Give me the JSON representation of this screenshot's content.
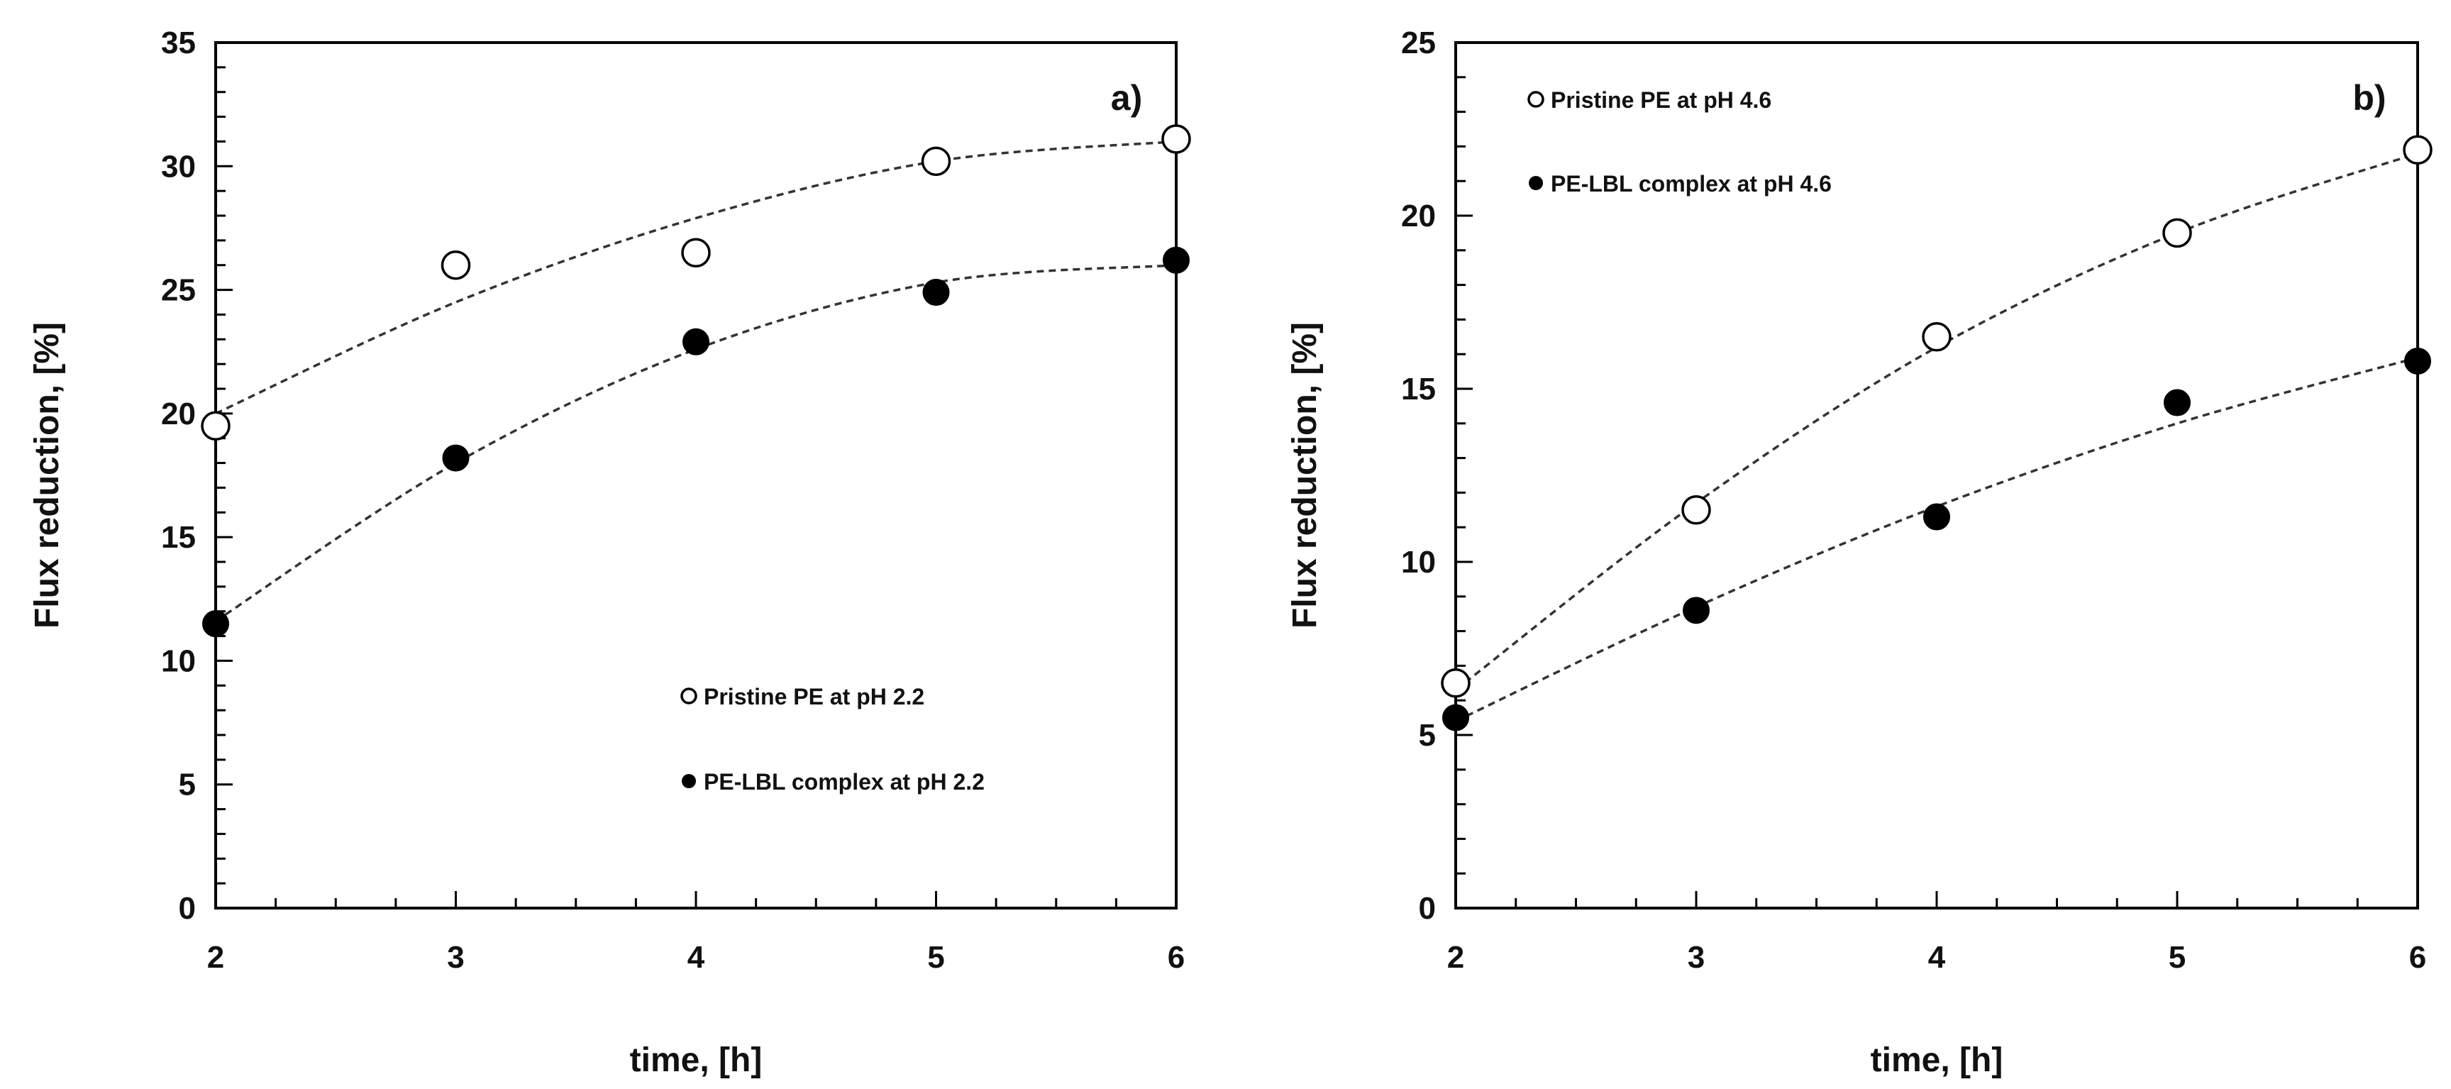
{
  "chart_data": [
    {
      "type": "scatter",
      "panel_tag": "a)",
      "xlabel": "time, [h]",
      "ylabel": "Flux reduction, [%]",
      "xlim": [
        2,
        6
      ],
      "ylim": [
        0,
        35
      ],
      "x_ticks": [
        "2",
        "3",
        "4",
        "5",
        "6"
      ],
      "y_ticks": [
        "0",
        "5",
        "10",
        "15",
        "20",
        "25",
        "30",
        "35"
      ],
      "y_tick_step": 5,
      "x_minor_step": 0.25,
      "y_minor_step": 1,
      "legend_position": "lower-right",
      "series": [
        {
          "name": "Pristine PE at pH 2.2",
          "marker": "open-circle",
          "x": [
            2,
            3,
            4,
            5,
            6
          ],
          "y": [
            19.5,
            26.0,
            26.5,
            30.2,
            31.1
          ],
          "fit": [
            20.0,
            24.5,
            27.9,
            30.2,
            31.0
          ]
        },
        {
          "name": "PE-LBL complex at pH 2.2",
          "marker": "filled-circle",
          "x": [
            2,
            3,
            4,
            5,
            6
          ],
          "y": [
            11.5,
            18.2,
            22.9,
            24.9,
            26.2
          ],
          "fit": [
            11.6,
            18.0,
            22.6,
            25.3,
            26.0
          ]
        }
      ]
    },
    {
      "type": "scatter",
      "panel_tag": "b)",
      "xlabel": "time, [h]",
      "ylabel": "Flux reduction, [%]",
      "xlim": [
        2,
        6
      ],
      "ylim": [
        0,
        25
      ],
      "x_ticks": [
        "2",
        "3",
        "4",
        "5",
        "6"
      ],
      "y_ticks": [
        "0",
        "5",
        "10",
        "15",
        "20",
        "25"
      ],
      "y_tick_step": 5,
      "x_minor_step": 0.25,
      "y_minor_step": 1,
      "legend_position": "top-left",
      "series": [
        {
          "name": "Pristine PE at pH 4.6",
          "marker": "open-circle",
          "x": [
            2,
            3,
            4,
            5,
            6
          ],
          "y": [
            6.5,
            11.5,
            16.5,
            19.5,
            21.9
          ],
          "fit": [
            6.3,
            11.7,
            16.2,
            19.5,
            21.8
          ]
        },
        {
          "name": "PE-LBL complex at pH 4.6",
          "marker": "filled-circle",
          "x": [
            2,
            3,
            4,
            5,
            6
          ],
          "y": [
            5.5,
            8.6,
            11.3,
            14.6,
            15.8
          ],
          "fit": [
            5.4,
            8.7,
            11.6,
            14.0,
            15.9
          ]
        }
      ]
    }
  ]
}
